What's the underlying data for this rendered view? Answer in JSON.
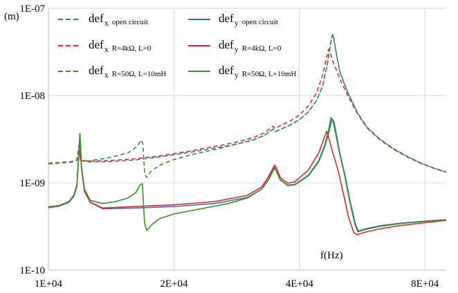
{
  "chart_data": {
    "type": "line",
    "x_scale": "log",
    "y_scale": "log",
    "xlim": [
      10000,
      90000
    ],
    "ylim": [
      1e-10,
      1e-07
    ],
    "x_ticks": [
      {
        "value": 10000,
        "label": "1E+04"
      },
      {
        "value": 20000,
        "label": "2E+04"
      },
      {
        "value": 40000,
        "label": "4E+04"
      },
      {
        "value": 80000,
        "label": "8E+04"
      }
    ],
    "y_ticks": [
      {
        "value": 1e-10,
        "label": "1E-10"
      },
      {
        "value": 1e-09,
        "label": "1E-09"
      },
      {
        "value": 1e-08,
        "label": "1E-08"
      },
      {
        "value": 1e-07,
        "label": "1E-07"
      }
    ],
    "xlabel": "f(Hz)",
    "ylabel": "(m)",
    "grid": {
      "x_major": true,
      "y_major": true
    },
    "legend": "top, inside plot",
    "series": [
      {
        "name": "def_x open circuit",
        "label_main": "def",
        "label_sub": "x",
        "label_cond": "open circuit",
        "color": "#2E75B6",
        "dash": "dashed",
        "points": [
          [
            10000,
            1.65e-09
          ],
          [
            11300,
            1.72e-09
          ],
          [
            11700,
            1.8e-09
          ],
          [
            11850,
            2.8e-09
          ],
          [
            11950,
            1.8e-09
          ],
          [
            12500,
            1.74e-09
          ],
          [
            14000,
            1.75e-09
          ],
          [
            16000,
            1.82e-09
          ],
          [
            18000,
            1.95e-09
          ],
          [
            20000,
            2.1e-09
          ],
          [
            22000,
            2.25e-09
          ],
          [
            25000,
            2.5e-09
          ],
          [
            28000,
            2.75e-09
          ],
          [
            31000,
            3.1e-09
          ],
          [
            33000,
            3.5e-09
          ],
          [
            34000,
            3.9e-09
          ],
          [
            34600,
            4.15e-09
          ],
          [
            35000,
            3.85e-09
          ],
          [
            35600,
            4e-09
          ],
          [
            38000,
            4.6e-09
          ],
          [
            40000,
            5.3e-09
          ],
          [
            42000,
            6.5e-09
          ],
          [
            44000,
            8.8e-09
          ],
          [
            45500,
            1.3e-08
          ],
          [
            46500,
            2.1e-08
          ],
          [
            47200,
            3.2e-08
          ],
          [
            47700,
            4.5e-08
          ],
          [
            48100,
            5.1e-08
          ],
          [
            48500,
            4.2e-08
          ],
          [
            49200,
            2.8e-08
          ],
          [
            50000,
            1.9e-08
          ],
          [
            52000,
            1.15e-08
          ],
          [
            55000,
            6.5e-09
          ],
          [
            58000,
            4.4e-09
          ],
          [
            62000,
            3.25e-09
          ],
          [
            67000,
            2.5e-09
          ],
          [
            72000,
            2.05e-09
          ],
          [
            78000,
            1.7e-09
          ],
          [
            84000,
            1.48e-09
          ],
          [
            90000,
            1.33e-09
          ]
        ]
      },
      {
        "name": "def_y open circuit",
        "label_main": "def",
        "label_sub": "y",
        "label_cond": "open circuit",
        "color": "#2E75B6",
        "dash": "solid",
        "points": [
          [
            10000,
            5.2e-10
          ],
          [
            10600,
            5.4e-10
          ],
          [
            11200,
            6e-10
          ],
          [
            11500,
            7e-10
          ],
          [
            11700,
            9e-10
          ],
          [
            11820,
            2e-09
          ],
          [
            11900,
            3.6e-09
          ],
          [
            12000,
            1.5e-09
          ],
          [
            12200,
            8e-10
          ],
          [
            12600,
            6e-10
          ],
          [
            13500,
            5.05e-10
          ],
          [
            16000,
            5.15e-10
          ],
          [
            20000,
            5.35e-10
          ],
          [
            25000,
            5.8e-10
          ],
          [
            30000,
            6.8e-10
          ],
          [
            32500,
            8.5e-10
          ],
          [
            33800,
            1.1e-09
          ],
          [
            34500,
            1.35e-09
          ],
          [
            34900,
            1.47e-09
          ],
          [
            35300,
            1.32e-09
          ],
          [
            36000,
            1.08e-09
          ],
          [
            37500,
            9.3e-10
          ],
          [
            39000,
            9.5e-10
          ],
          [
            42000,
            1.2e-09
          ],
          [
            44500,
            1.75e-09
          ],
          [
            46000,
            2.6e-09
          ],
          [
            47200,
            4e-09
          ],
          [
            47900,
            5.4e-09
          ],
          [
            48400,
            5e-09
          ],
          [
            49000,
            3.7e-09
          ],
          [
            50000,
            2.2e-09
          ],
          [
            51500,
            1.2e-09
          ],
          [
            53000,
            6e-10
          ],
          [
            54500,
            3.4e-10
          ],
          [
            55300,
            2.8e-10
          ],
          [
            58000,
            3e-10
          ],
          [
            63000,
            3.25e-10
          ],
          [
            70000,
            3.45e-10
          ],
          [
            80000,
            3.65e-10
          ],
          [
            90000,
            3.78e-10
          ]
        ]
      },
      {
        "name": "def_x R=4kΩ, L=0",
        "label_main": "def",
        "label_sub": "x",
        "label_cond": "R=4kΩ, L=0",
        "color": "#E0262A",
        "dash": "dashed",
        "points": [
          [
            10000,
            1.68e-09
          ],
          [
            11300,
            1.75e-09
          ],
          [
            11700,
            1.83e-09
          ],
          [
            11850,
            2.5e-09
          ],
          [
            11950,
            1.82e-09
          ],
          [
            12500,
            1.77e-09
          ],
          [
            14000,
            1.8e-09
          ],
          [
            16000,
            1.88e-09
          ],
          [
            18000,
            2e-09
          ],
          [
            20000,
            2.16e-09
          ],
          [
            22000,
            2.33e-09
          ],
          [
            25000,
            2.6e-09
          ],
          [
            28000,
            2.9e-09
          ],
          [
            31000,
            3.3e-09
          ],
          [
            33000,
            3.75e-09
          ],
          [
            34000,
            4.2e-09
          ],
          [
            34600,
            4.45e-09
          ],
          [
            35000,
            4.2e-09
          ],
          [
            35600,
            4.4e-09
          ],
          [
            38000,
            5.1e-09
          ],
          [
            40000,
            6e-09
          ],
          [
            42000,
            7.6e-09
          ],
          [
            44000,
            1.08e-08
          ],
          [
            45500,
            1.75e-08
          ],
          [
            46500,
            2.8e-08
          ],
          [
            47000,
            3.4e-08
          ],
          [
            47400,
            3.1e-08
          ],
          [
            48200,
            2.4e-08
          ],
          [
            49200,
            1.9e-08
          ],
          [
            50000,
            1.55e-08
          ],
          [
            52000,
            1.05e-08
          ],
          [
            55000,
            6.3e-09
          ],
          [
            58000,
            4.3e-09
          ],
          [
            62000,
            3.2e-09
          ],
          [
            67000,
            2.45e-09
          ],
          [
            72000,
            2.02e-09
          ],
          [
            78000,
            1.68e-09
          ],
          [
            84000,
            1.47e-09
          ],
          [
            90000,
            1.32e-09
          ]
        ]
      },
      {
        "name": "def_y R=4kΩ, L=0",
        "label_main": "def",
        "label_sub": "y",
        "label_cond": "R=4kΩ, L=0",
        "color": "#E0262A",
        "dash": "solid",
        "points": [
          [
            10000,
            5.3e-10
          ],
          [
            10600,
            5.5e-10
          ],
          [
            11200,
            6.1e-10
          ],
          [
            11500,
            7.1e-10
          ],
          [
            11700,
            9.2e-10
          ],
          [
            11820,
            2e-09
          ],
          [
            11900,
            3.5e-09
          ],
          [
            12000,
            1.5e-09
          ],
          [
            12200,
            8.1e-10
          ],
          [
            12600,
            6e-10
          ],
          [
            13500,
            5.15e-10
          ],
          [
            16000,
            5.35e-10
          ],
          [
            20000,
            5.6e-10
          ],
          [
            25000,
            6.1e-10
          ],
          [
            30000,
            7.2e-10
          ],
          [
            32500,
            9e-10
          ],
          [
            33800,
            1.2e-09
          ],
          [
            34500,
            1.45e-09
          ],
          [
            34900,
            1.6e-09
          ],
          [
            35300,
            1.45e-09
          ],
          [
            36000,
            1.15e-09
          ],
          [
            37500,
            9.9e-10
          ],
          [
            39000,
            1.03e-09
          ],
          [
            42000,
            1.4e-09
          ],
          [
            44500,
            2.2e-09
          ],
          [
            45800,
            3.2e-09
          ],
          [
            46500,
            3.9e-09
          ],
          [
            47000,
            3.3e-09
          ],
          [
            48000,
            2.3e-09
          ],
          [
            49500,
            1.4e-09
          ],
          [
            51000,
            7.5e-10
          ],
          [
            52500,
            4e-10
          ],
          [
            54000,
            2.7e-10
          ],
          [
            55000,
            2.55e-10
          ],
          [
            58000,
            2.75e-10
          ],
          [
            63000,
            3e-10
          ],
          [
            70000,
            3.25e-10
          ],
          [
            80000,
            3.5e-10
          ],
          [
            90000,
            3.72e-10
          ]
        ]
      },
      {
        "name": "def_x R=50Ω, L=10mH",
        "label_main": "def",
        "label_sub": "x",
        "label_cond": "R=50Ω, L=10mH",
        "color": "#3C8C2E",
        "dash": "dashed",
        "points": [
          [
            10000,
            1.66e-09
          ],
          [
            11300,
            1.73e-09
          ],
          [
            11700,
            1.82e-09
          ],
          [
            11850,
            2.6e-09
          ],
          [
            11950,
            1.8e-09
          ],
          [
            12500,
            1.78e-09
          ],
          [
            14000,
            1.95e-09
          ],
          [
            15500,
            2.2e-09
          ],
          [
            16300,
            2.6e-09
          ],
          [
            16700,
            3.1e-09
          ],
          [
            16850,
            2.8e-09
          ],
          [
            17000,
            1.35e-09
          ],
          [
            17200,
            1.15e-09
          ],
          [
            17600,
            1.35e-09
          ],
          [
            18500,
            1.6e-09
          ],
          [
            20000,
            1.85e-09
          ],
          [
            22000,
            2.1e-09
          ],
          [
            25000,
            2.4e-09
          ],
          [
            28000,
            2.75e-09
          ],
          [
            31000,
            3.1e-09
          ],
          [
            33000,
            3.5e-09
          ],
          [
            34000,
            3.9e-09
          ],
          [
            34600,
            4.15e-09
          ],
          [
            35000,
            3.85e-09
          ],
          [
            35600,
            4e-09
          ],
          [
            38000,
            4.6e-09
          ],
          [
            40000,
            5.3e-09
          ],
          [
            42000,
            6.5e-09
          ],
          [
            44000,
            8.8e-09
          ],
          [
            45500,
            1.3e-08
          ],
          [
            46500,
            2.1e-08
          ],
          [
            47200,
            3.2e-08
          ],
          [
            47700,
            4.4e-08
          ],
          [
            48100,
            5e-08
          ],
          [
            48500,
            4.1e-08
          ],
          [
            49200,
            2.75e-08
          ],
          [
            50000,
            1.88e-08
          ],
          [
            52000,
            1.14e-08
          ],
          [
            55000,
            6.4e-09
          ],
          [
            58000,
            4.35e-09
          ],
          [
            62000,
            3.2e-09
          ],
          [
            67000,
            2.48e-09
          ],
          [
            72000,
            2.03e-09
          ],
          [
            78000,
            1.69e-09
          ],
          [
            84000,
            1.47e-09
          ],
          [
            90000,
            1.32e-09
          ]
        ]
      },
      {
        "name": "def_y R=50Ω, L=10mH",
        "label_main": "def",
        "label_sub": "y",
        "label_cond": "R=50Ω, L=10mH",
        "color": "#3C8C2E",
        "dash": "solid",
        "points": [
          [
            10000,
            5.2e-10
          ],
          [
            10600,
            5.45e-10
          ],
          [
            11200,
            6.1e-10
          ],
          [
            11500,
            7.2e-10
          ],
          [
            11700,
            9.5e-10
          ],
          [
            11820,
            2.1e-09
          ],
          [
            11900,
            3.7e-09
          ],
          [
            12000,
            1.6e-09
          ],
          [
            12200,
            8.5e-10
          ],
          [
            12600,
            6.3e-10
          ],
          [
            13500,
            5.8e-10
          ],
          [
            14500,
            6.1e-10
          ],
          [
            15500,
            6.7e-10
          ],
          [
            16200,
            7.7e-10
          ],
          [
            16600,
            9.5e-10
          ],
          [
            16800,
            9.8e-10
          ],
          [
            17000,
            3.5e-10
          ],
          [
            17200,
            2.85e-10
          ],
          [
            17800,
            3.4e-10
          ],
          [
            18500,
            3.9e-10
          ],
          [
            20000,
            4.4e-10
          ],
          [
            23000,
            5e-10
          ],
          [
            27000,
            5.8e-10
          ],
          [
            30000,
            6.7e-10
          ],
          [
            32500,
            8.5e-10
          ],
          [
            33800,
            1.12e-09
          ],
          [
            34500,
            1.38e-09
          ],
          [
            34900,
            1.5e-09
          ],
          [
            35300,
            1.33e-09
          ],
          [
            36000,
            1.09e-09
          ],
          [
            37500,
            9.4e-10
          ],
          [
            39000,
            9.6e-10
          ],
          [
            42000,
            1.22e-09
          ],
          [
            44500,
            1.8e-09
          ],
          [
            46000,
            2.7e-09
          ],
          [
            47000,
            4e-09
          ],
          [
            47600,
            5.6e-09
          ],
          [
            48100,
            5.2e-09
          ],
          [
            48800,
            3.8e-09
          ],
          [
            49800,
            2.3e-09
          ],
          [
            51300,
            1.25e-09
          ],
          [
            52800,
            6.2e-10
          ],
          [
            54300,
            3.4e-10
          ],
          [
            55200,
            2.75e-10
          ],
          [
            58000,
            2.95e-10
          ],
          [
            63000,
            3.2e-10
          ],
          [
            70000,
            3.42e-10
          ],
          [
            80000,
            3.63e-10
          ],
          [
            90000,
            3.76e-10
          ]
        ]
      }
    ]
  }
}
